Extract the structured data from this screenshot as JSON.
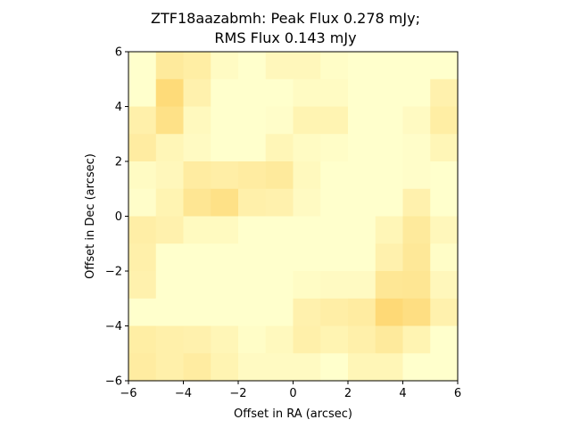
{
  "chart_data": {
    "type": "heatmap",
    "title": "ZTF18aazabmh: Peak Flux 0.278 mJy;",
    "subtitle": "RMS Flux 0.143 mJy",
    "xlabel": "Offset in RA (arcsec)",
    "ylabel": "Offset in Dec (arcsec)",
    "xlim": [
      -6,
      6
    ],
    "ylim": [
      -6,
      6
    ],
    "xticks": [
      -6,
      -4,
      -2,
      0,
      2,
      4,
      6
    ],
    "yticks": [
      -6,
      -4,
      -2,
      0,
      2,
      4,
      6
    ],
    "grid": false,
    "colormap": {
      "low": "#ffffcc",
      "mid": "#fed976",
      "high": "#fd8d3c"
    },
    "value_range": [
      0,
      1
    ],
    "rows_top_to_bottom": [
      [
        0.0,
        0.28,
        0.23,
        0.05,
        0.0,
        0.1,
        0.1,
        0.03,
        0.0,
        0.0,
        0.0,
        0.0
      ],
      [
        0.0,
        0.48,
        0.18,
        0.0,
        0.0,
        0.0,
        0.05,
        0.05,
        0.0,
        0.0,
        0.0,
        0.18
      ],
      [
        0.2,
        0.4,
        0.08,
        0.0,
        0.0,
        0.02,
        0.15,
        0.15,
        0.0,
        0.0,
        0.06,
        0.23
      ],
      [
        0.25,
        0.12,
        0.06,
        0.0,
        0.0,
        0.12,
        0.05,
        0.03,
        0.0,
        0.0,
        0.02,
        0.12
      ],
      [
        0.05,
        0.1,
        0.25,
        0.22,
        0.25,
        0.28,
        0.08,
        0.0,
        0.0,
        0.0,
        0.02,
        0.0
      ],
      [
        0.02,
        0.15,
        0.33,
        0.4,
        0.2,
        0.18,
        0.06,
        0.0,
        0.0,
        0.0,
        0.18,
        0.0
      ],
      [
        0.22,
        0.18,
        0.07,
        0.07,
        0.0,
        0.0,
        0.0,
        0.0,
        0.0,
        0.12,
        0.28,
        0.1
      ],
      [
        0.2,
        0.0,
        0.0,
        0.0,
        0.0,
        0.0,
        0.0,
        0.0,
        0.0,
        0.18,
        0.3,
        0.03
      ],
      [
        0.18,
        0.0,
        0.0,
        0.0,
        0.0,
        0.0,
        0.04,
        0.06,
        0.06,
        0.32,
        0.33,
        0.1
      ],
      [
        0.0,
        0.0,
        0.0,
        0.0,
        0.0,
        0.0,
        0.18,
        0.22,
        0.25,
        0.5,
        0.43,
        0.18
      ],
      [
        0.23,
        0.2,
        0.18,
        0.12,
        0.03,
        0.08,
        0.2,
        0.15,
        0.2,
        0.28,
        0.15,
        0.0
      ],
      [
        0.25,
        0.2,
        0.25,
        0.15,
        0.06,
        0.06,
        0.06,
        0.0,
        0.12,
        0.12,
        0.0,
        0.0
      ]
    ]
  }
}
